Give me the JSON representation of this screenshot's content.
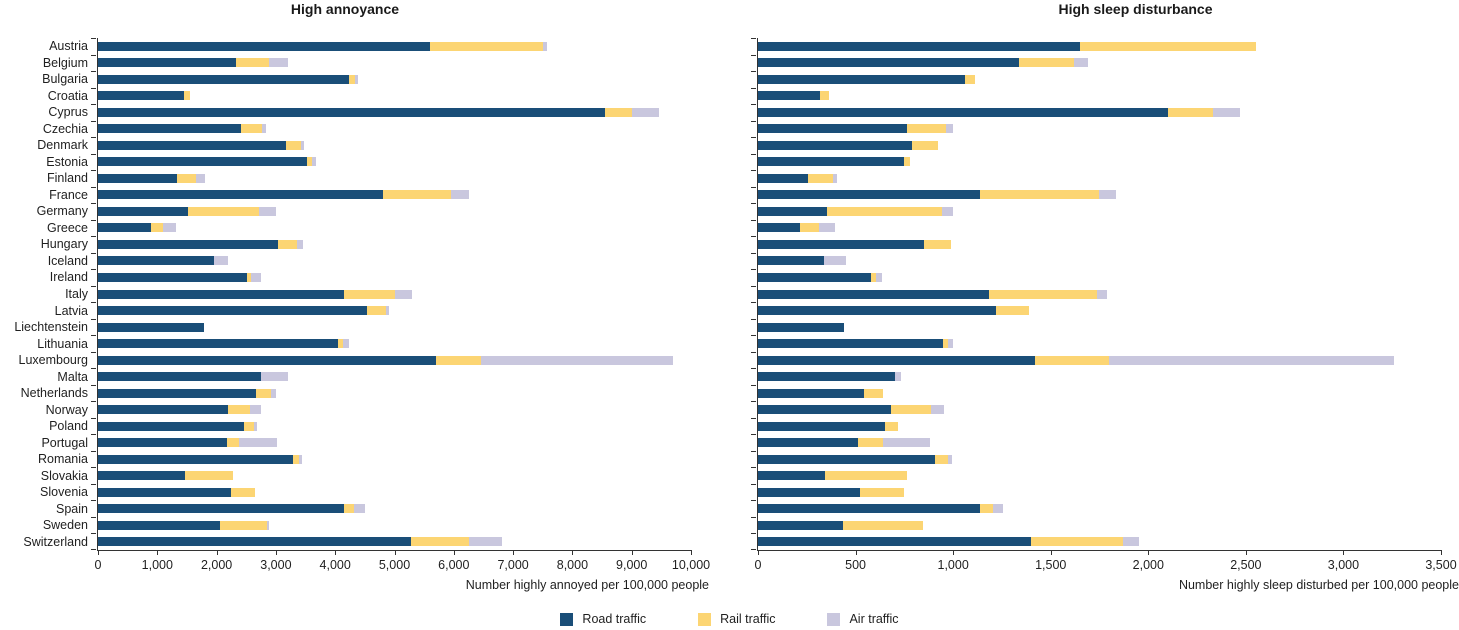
{
  "figure": {
    "legend": [
      {
        "name": "road",
        "label": "Road traffic",
        "color": "#1a4e78"
      },
      {
        "name": "rail",
        "label": "Rail traffic",
        "color": "#fcd573"
      },
      {
        "name": "air",
        "label": "Air traffic",
        "color": "#c9c7de"
      }
    ]
  },
  "chart_data": [
    {
      "id": "annoyance",
      "type": "bar",
      "orientation": "horizontal",
      "stacked": true,
      "title": "High annoyance",
      "xlabel": "Number highly annoyed per 100,000 people",
      "xlim": [
        0,
        10000
      ],
      "xticks": [
        0,
        1000,
        2000,
        3000,
        4000,
        5000,
        6000,
        7000,
        8000,
        9000,
        10000
      ],
      "grid": false,
      "categories": [
        "Austria",
        "Belgium",
        "Bulgaria",
        "Croatia",
        "Cyprus",
        "Czechia",
        "Denmark",
        "Estonia",
        "Finland",
        "France",
        "Germany",
        "Greece",
        "Hungary",
        "Iceland",
        "Ireland",
        "Italy",
        "Latvia",
        "Liechtenstein",
        "Lithuania",
        "Luxembourg",
        "Malta",
        "Netherlands",
        "Norway",
        "Poland",
        "Portugal",
        "Romania",
        "Slovakia",
        "Slovenia",
        "Spain",
        "Sweden",
        "Switzerland"
      ],
      "series": [
        {
          "name": "Road traffic",
          "color": "#1a4e78",
          "values": [
            5600,
            2320,
            4240,
            1450,
            8550,
            2410,
            3170,
            3530,
            1330,
            4800,
            1510,
            890,
            3030,
            1950,
            2505,
            4150,
            4530,
            1790,
            4050,
            5700,
            2750,
            2660,
            2190,
            2470,
            2170,
            3290,
            1470,
            2240,
            4140,
            2050,
            5280
          ]
        },
        {
          "name": "Rail traffic",
          "color": "#fcd573",
          "values": [
            1900,
            570,
            100,
            100,
            460,
            360,
            250,
            80,
            320,
            1150,
            1210,
            210,
            330,
            0,
            75,
            860,
            330,
            0,
            80,
            760,
            0,
            260,
            370,
            160,
            210,
            100,
            810,
            400,
            180,
            800,
            970
          ]
        },
        {
          "name": "Air traffic",
          "color": "#c9c7de",
          "values": [
            80,
            310,
            40,
            0,
            450,
            70,
            50,
            70,
            160,
            300,
            280,
            220,
            90,
            250,
            170,
            290,
            40,
            0,
            100,
            3240,
            450,
            90,
            190,
            50,
            640,
            50,
            0,
            0,
            190,
            40,
            570
          ]
        }
      ]
    },
    {
      "id": "sleep-disturbance",
      "type": "bar",
      "orientation": "horizontal",
      "stacked": true,
      "title": "High sleep disturbance",
      "xlabel": "Number highly sleep disturbed per 100,000 people",
      "xlim": [
        0,
        3500
      ],
      "xticks": [
        0,
        500,
        1000,
        1500,
        2000,
        2500,
        3000,
        3500
      ],
      "grid": false,
      "categories": [
        "Austria",
        "Belgium",
        "Bulgaria",
        "Croatia",
        "Cyprus",
        "Czechia",
        "Denmark",
        "Estonia",
        "Finland",
        "France",
        "Germany",
        "Greece",
        "Hungary",
        "Iceland",
        "Ireland",
        "Italy",
        "Latvia",
        "Liechtenstein",
        "Lithuania",
        "Luxembourg",
        "Malta",
        "Netherlands",
        "Norway",
        "Poland",
        "Portugal",
        "Romania",
        "Slovakia",
        "Slovenia",
        "Spain",
        "Sweden",
        "Switzerland"
      ],
      "series": [
        {
          "name": "Road traffic",
          "color": "#1a4e78",
          "values": [
            1650,
            1340,
            1060,
            320,
            2100,
            765,
            790,
            750,
            255,
            1140,
            355,
            215,
            850,
            340,
            580,
            1185,
            1220,
            440,
            950,
            1420,
            700,
            545,
            680,
            650,
            510,
            905,
            345,
            525,
            1140,
            435,
            1400
          ]
        },
        {
          "name": "Rail traffic",
          "color": "#fcd573",
          "values": [
            900,
            280,
            50,
            45,
            230,
            200,
            130,
            30,
            130,
            610,
            590,
            100,
            140,
            0,
            25,
            550,
            170,
            0,
            25,
            380,
            0,
            95,
            205,
            70,
            130,
            70,
            420,
            225,
            65,
            410,
            470
          ]
        },
        {
          "name": "Air traffic",
          "color": "#c9c7de",
          "values": [
            0,
            70,
            0,
            0,
            140,
            35,
            0,
            0,
            20,
            85,
            55,
            80,
            0,
            110,
            30,
            55,
            0,
            0,
            25,
            1460,
            35,
            0,
            70,
            0,
            240,
            20,
            0,
            0,
            50,
            0,
            85
          ]
        }
      ]
    }
  ]
}
